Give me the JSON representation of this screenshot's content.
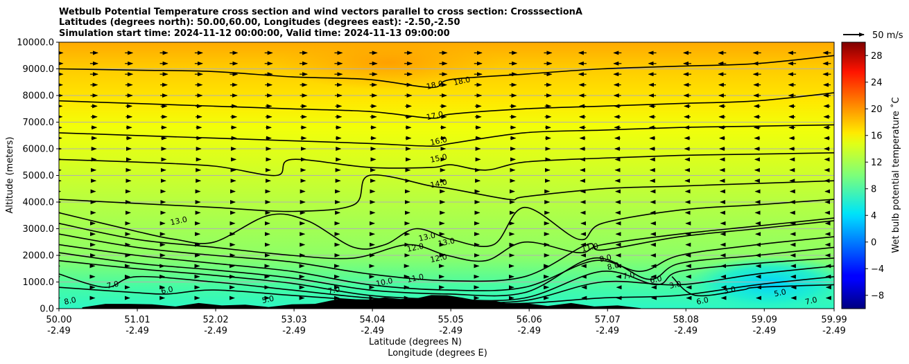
{
  "chart_data": {
    "type": "heatmap",
    "title_lines": [
      "Wetbulb Potential Temperature cross section and wind vectors parallel to cross section: CrosssectionA",
      "Latitudes (degrees north): 50.00,60.00, Longitudes (degrees east): -2.50,-2.50",
      "Simulation start time: 2024-11-12 00:00:00, Valid time: 2024-11-13 09:00:00"
    ],
    "xlabel_lat": "Latitude (degrees N)",
    "xlabel_lon": "Longitude (degrees E)",
    "ylabel": "Altitude (meters)",
    "xlim": [
      50.0,
      59.99
    ],
    "ylim": [
      0,
      10000
    ],
    "x_ticks": [
      {
        "value": 50.0,
        "lat": "50.00",
        "lon": "-2.49"
      },
      {
        "value": 51.01,
        "lat": "51.01",
        "lon": "-2.49"
      },
      {
        "value": 52.02,
        "lat": "52.02",
        "lon": "-2.49"
      },
      {
        "value": 53.03,
        "lat": "53.03",
        "lon": "-2.49"
      },
      {
        "value": 54.04,
        "lat": "54.04",
        "lon": "-2.49"
      },
      {
        "value": 55.05,
        "lat": "55.05",
        "lon": "-2.49"
      },
      {
        "value": 56.06,
        "lat": "56.06",
        "lon": "-2.49"
      },
      {
        "value": 57.07,
        "lat": "57.07",
        "lon": "-2.49"
      },
      {
        "value": 58.08,
        "lat": "58.08",
        "lon": "-2.49"
      },
      {
        "value": 59.09,
        "lat": "59.09",
        "lon": "-2.49"
      },
      {
        "value": 59.99,
        "lat": "59.99",
        "lon": "-2.49"
      }
    ],
    "y_ticks": [
      {
        "value": 0,
        "label": "0.0"
      },
      {
        "value": 1000,
        "label": "1000.0"
      },
      {
        "value": 2000,
        "label": "2000.0"
      },
      {
        "value": 3000,
        "label": "3000.0"
      },
      {
        "value": 4000,
        "label": "4000.0"
      },
      {
        "value": 5000,
        "label": "5000.0"
      },
      {
        "value": 6000,
        "label": "6000.0"
      },
      {
        "value": 7000,
        "label": "7000.0"
      },
      {
        "value": 8000,
        "label": "8000.0"
      },
      {
        "value": 9000,
        "label": "9000.0"
      },
      {
        "value": 10000,
        "label": "10000.0"
      }
    ],
    "grid": "horizontal",
    "colorbar": {
      "label": "Wet bulb potential temperature ˚C",
      "range": [
        -10,
        30
      ],
      "ticks": [
        -8,
        -4,
        0,
        4,
        8,
        12,
        16,
        20,
        24,
        28
      ],
      "tick_labels": [
        "−8",
        "−4",
        "0",
        "4",
        "8",
        "12",
        "16",
        "20",
        "24",
        "28"
      ],
      "colormap": "jet",
      "placement": "right"
    },
    "quiver_key": {
      "label": "50 m/s",
      "placement": "top-right"
    },
    "contour_lines": [
      {
        "value": 18.0,
        "label": "18.0",
        "points": [
          [
            50.0,
            9000
          ],
          [
            51.0,
            8950
          ],
          [
            52.0,
            8900
          ],
          [
            53.0,
            8700
          ],
          [
            54.0,
            8600
          ],
          [
            54.8,
            8300
          ],
          [
            55.05,
            8600
          ],
          [
            56.0,
            8800
          ],
          [
            57.0,
            9000
          ],
          [
            58.0,
            9100
          ],
          [
            59.0,
            9200
          ],
          [
            59.99,
            9500
          ]
        ]
      },
      {
        "value": 17.0,
        "label": "17.0",
        "points": [
          [
            50.0,
            7800
          ],
          [
            51.0,
            7700
          ],
          [
            52.0,
            7600
          ],
          [
            53.0,
            7500
          ],
          [
            54.0,
            7400
          ],
          [
            54.8,
            7150
          ],
          [
            55.05,
            7300
          ],
          [
            56.0,
            7500
          ],
          [
            57.0,
            7600
          ],
          [
            58.0,
            7700
          ],
          [
            59.0,
            7800
          ],
          [
            59.99,
            8100
          ]
        ]
      },
      {
        "value": 16.0,
        "label": "16.0",
        "points": [
          [
            50.0,
            6600
          ],
          [
            51.0,
            6500
          ],
          [
            52.0,
            6400
          ],
          [
            53.0,
            6300
          ],
          [
            54.0,
            6200
          ],
          [
            54.8,
            6100
          ],
          [
            55.05,
            6200
          ],
          [
            56.0,
            6600
          ],
          [
            57.0,
            6700
          ],
          [
            58.0,
            6800
          ],
          [
            59.0,
            6850
          ],
          [
            59.99,
            6900
          ]
        ]
      },
      {
        "value": 15.0,
        "label": "15.0",
        "points": [
          [
            50.0,
            5600
          ],
          [
            51.0,
            5500
          ],
          [
            52.0,
            5350
          ],
          [
            52.8,
            5000
          ],
          [
            53.0,
            5600
          ],
          [
            54.0,
            5300
          ],
          [
            54.8,
            5300
          ],
          [
            55.05,
            5400
          ],
          [
            55.5,
            5200
          ],
          [
            56.0,
            5500
          ],
          [
            57.0,
            5650
          ],
          [
            58.0,
            5750
          ],
          [
            59.0,
            5800
          ],
          [
            59.99,
            5850
          ]
        ]
      },
      {
        "value": 14.0,
        "label": "14.0",
        "points": [
          [
            50.0,
            4100
          ],
          [
            51.0,
            3950
          ],
          [
            52.0,
            3800
          ],
          [
            53.0,
            3650
          ],
          [
            53.8,
            3900
          ],
          [
            54.0,
            5000
          ],
          [
            54.8,
            4600
          ],
          [
            55.05,
            4500
          ],
          [
            55.8,
            4100
          ],
          [
            56.0,
            4200
          ],
          [
            57.0,
            4500
          ],
          [
            58.0,
            4600
          ],
          [
            59.0,
            4700
          ],
          [
            59.99,
            4800
          ]
        ]
      },
      {
        "value": 13.0,
        "label": "13.0",
        "points": [
          [
            50.0,
            3600
          ],
          [
            51.0,
            2900
          ],
          [
            51.5,
            2600
          ],
          [
            52.0,
            2500
          ],
          [
            52.7,
            3500
          ],
          [
            53.2,
            3300
          ],
          [
            53.8,
            2300
          ],
          [
            54.2,
            2400
          ],
          [
            54.6,
            3000
          ],
          [
            55.05,
            2600
          ],
          [
            55.6,
            2400
          ],
          [
            56.0,
            3800
          ],
          [
            56.7,
            2600
          ],
          [
            57.0,
            3200
          ],
          [
            58.0,
            3700
          ],
          [
            59.0,
            3900
          ],
          [
            59.99,
            4100
          ]
        ]
      },
      {
        "value": 12.0,
        "label": "12.0",
        "points": [
          [
            50.0,
            3200
          ],
          [
            51.0,
            2600
          ],
          [
            52.0,
            2300
          ],
          [
            53.0,
            2000
          ],
          [
            53.8,
            1900
          ],
          [
            54.5,
            2400
          ],
          [
            55.0,
            2000
          ],
          [
            55.5,
            1800
          ],
          [
            56.0,
            2500
          ],
          [
            56.7,
            2100
          ],
          [
            57.0,
            2400
          ],
          [
            58.0,
            2800
          ],
          [
            59.0,
            3100
          ],
          [
            59.99,
            3400
          ]
        ]
      },
      {
        "value": 11.0,
        "label": "11.0",
        "points": [
          [
            50.0,
            2800
          ],
          [
            51.0,
            2300
          ],
          [
            52.0,
            2000
          ],
          [
            53.0,
            1750
          ],
          [
            54.0,
            1300
          ],
          [
            55.0,
            1050
          ],
          [
            56.0,
            1200
          ],
          [
            56.8,
            2400
          ],
          [
            57.0,
            2200
          ],
          [
            58.0,
            2700
          ],
          [
            59.0,
            3000
          ],
          [
            59.99,
            3300
          ]
        ]
      },
      {
        "value": 10.0,
        "label": "10.0",
        "points": [
          [
            50.0,
            2400
          ],
          [
            51.0,
            2000
          ],
          [
            52.0,
            1700
          ],
          [
            53.0,
            1400
          ],
          [
            54.0,
            900
          ],
          [
            55.0,
            700
          ],
          [
            56.0,
            800
          ],
          [
            56.9,
            1800
          ],
          [
            57.5,
            1400
          ],
          [
            58.0,
            2000
          ],
          [
            59.0,
            2400
          ],
          [
            59.99,
            2700
          ]
        ]
      },
      {
        "value": 9.0,
        "label": "9.0",
        "points": [
          [
            50.0,
            2100
          ],
          [
            51.0,
            1700
          ],
          [
            52.0,
            1450
          ],
          [
            53.0,
            1150
          ],
          [
            54.0,
            700
          ],
          [
            55.0,
            550
          ],
          [
            56.0,
            600
          ],
          [
            56.9,
            1900
          ],
          [
            57.6,
            1100
          ],
          [
            58.0,
            1700
          ],
          [
            59.0,
            2000
          ],
          [
            59.99,
            2300
          ]
        ]
      },
      {
        "value": 8.0,
        "label": "8.0",
        "points": [
          [
            50.0,
            1800
          ],
          [
            51.0,
            1500
          ],
          [
            52.0,
            1250
          ],
          [
            53.0,
            950
          ],
          [
            54.0,
            500
          ],
          [
            55.0,
            350
          ],
          [
            56.0,
            400
          ],
          [
            57.0,
            1400
          ],
          [
            57.7,
            900
          ],
          [
            58.0,
            1400
          ],
          [
            59.0,
            1700
          ],
          [
            59.99,
            1900
          ]
        ]
      },
      {
        "value": 7.0,
        "label": "7.0",
        "points": [
          [
            50.0,
            1300
          ],
          [
            50.6,
            800
          ],
          [
            51.0,
            1200
          ],
          [
            52.0,
            1000
          ],
          [
            53.0,
            700
          ],
          [
            54.0,
            400
          ],
          [
            55.0,
            250
          ],
          [
            56.0,
            300
          ],
          [
            57.0,
            1000
          ],
          [
            58.0,
            900
          ],
          [
            59.0,
            1300
          ],
          [
            59.99,
            1600
          ]
        ]
      },
      {
        "value": 6.0,
        "label": "6.0",
        "points": [
          [
            50.0,
            800
          ],
          [
            51.0,
            600
          ],
          [
            51.4,
            550
          ],
          [
            52.0,
            700
          ],
          [
            53.0,
            500
          ],
          [
            54.0,
            300
          ],
          [
            55.0,
            200
          ],
          [
            56.0,
            200
          ],
          [
            57.0,
            400
          ],
          [
            58.0,
            500
          ],
          [
            59.0,
            900
          ],
          [
            59.99,
            1200
          ]
        ]
      },
      {
        "value": 3.0,
        "label": "3.0",
        "points": [
          [
            57.9,
            1200
          ],
          [
            58.2,
            500
          ],
          [
            58.8,
            700
          ],
          [
            59.0,
            800
          ],
          [
            59.99,
            900
          ]
        ]
      }
    ],
    "contour_labels": [
      {
        "text": "18.0",
        "x": 54.85,
        "y": 8300
      },
      {
        "text": "18.0",
        "x": 55.2,
        "y": 8450
      },
      {
        "text": "17.0",
        "x": 54.85,
        "y": 7150
      },
      {
        "text": "16.0",
        "x": 54.9,
        "y": 6200
      },
      {
        "text": "15.0",
        "x": 54.9,
        "y": 5550
      },
      {
        "text": "14.0",
        "x": 54.9,
        "y": 4600
      },
      {
        "text": "13.0",
        "x": 51.55,
        "y": 3200
      },
      {
        "text": "13.0",
        "x": 54.75,
        "y": 2600
      },
      {
        "text": "13.0",
        "x": 55.0,
        "y": 2400
      },
      {
        "text": "12.0",
        "x": 54.6,
        "y": 2200
      },
      {
        "text": "12.0",
        "x": 54.9,
        "y": 1800
      },
      {
        "text": "11.0",
        "x": 54.6,
        "y": 1050
      },
      {
        "text": "11.0",
        "x": 56.85,
        "y": 2200
      },
      {
        "text": "10.0",
        "x": 54.2,
        "y": 900
      },
      {
        "text": "9.0",
        "x": 57.05,
        "y": 1800
      },
      {
        "text": "8.0",
        "x": 57.15,
        "y": 1500
      },
      {
        "text": "8.0",
        "x": 50.15,
        "y": 200
      },
      {
        "text": "7.0",
        "x": 50.7,
        "y": 800
      },
      {
        "text": "7.0",
        "x": 53.55,
        "y": 600
      },
      {
        "text": "7.0",
        "x": 57.35,
        "y": 1150
      },
      {
        "text": "7.0",
        "x": 59.7,
        "y": 200
      },
      {
        "text": "6.0",
        "x": 51.4,
        "y": 600
      },
      {
        "text": "6.0",
        "x": 57.7,
        "y": 1000
      },
      {
        "text": "6.0",
        "x": 58.3,
        "y": 200
      },
      {
        "text": "5.0",
        "x": 52.7,
        "y": 250
      },
      {
        "text": "5.0",
        "x": 59.3,
        "y": 500
      },
      {
        "text": "3.0",
        "x": 57.95,
        "y": 800
      },
      {
        "text": "3.0",
        "x": 58.65,
        "y": 600
      }
    ],
    "terrain": {
      "x": [
        50.3,
        50.6,
        50.9,
        51.2,
        51.5,
        51.8,
        52.1,
        52.4,
        52.7,
        53.0,
        53.3,
        53.6,
        53.8,
        54.0,
        54.2,
        54.4,
        54.6,
        54.8,
        55.0,
        55.2,
        55.4,
        55.6,
        55.8,
        56.0,
        56.3,
        56.6,
        56.9,
        57.2,
        57.5
      ],
      "height": [
        50,
        120,
        180,
        100,
        80,
        150,
        120,
        90,
        60,
        100,
        180,
        300,
        350,
        280,
        420,
        300,
        380,
        450,
        500,
        350,
        300,
        250,
        180,
        150,
        100,
        150,
        80,
        60,
        20
      ]
    },
    "wind_vectors": {
      "x": [
        50.0,
        50.45,
        50.9,
        51.35,
        51.8,
        52.25,
        52.7,
        53.15,
        53.6,
        54.05,
        54.5,
        54.95,
        55.4,
        55.85,
        56.3,
        56.75,
        57.2,
        57.65,
        58.1,
        58.55,
        59.0,
        59.45,
        59.9
      ],
      "y": [
        400,
        800,
        1200,
        1600,
        2000,
        2400,
        2800,
        3200,
        3600,
        4000,
        4400,
        4800,
        5200,
        5600,
        6000,
        6400,
        6800,
        7200,
        7600,
        8000,
        8400,
        8800,
        9200,
        9600
      ],
      "u_profile_west": [
        2,
        2,
        2,
        2,
        3,
        3,
        3,
        3,
        4,
        4,
        4,
        5,
        5,
        6,
        6,
        7,
        7,
        8,
        8,
        9,
        9,
        10,
        10,
        10
      ],
      "u_profile_east": [
        -2,
        -2,
        -3,
        -3,
        -4,
        -4,
        -4,
        -4,
        -5,
        -5,
        -5,
        -6,
        -6,
        -6,
        -7,
        -7,
        -8,
        -8,
        -8,
        -9,
        -9,
        -10,
        -10,
        -10
      ],
      "sign_change_x": 56.5
    }
  }
}
